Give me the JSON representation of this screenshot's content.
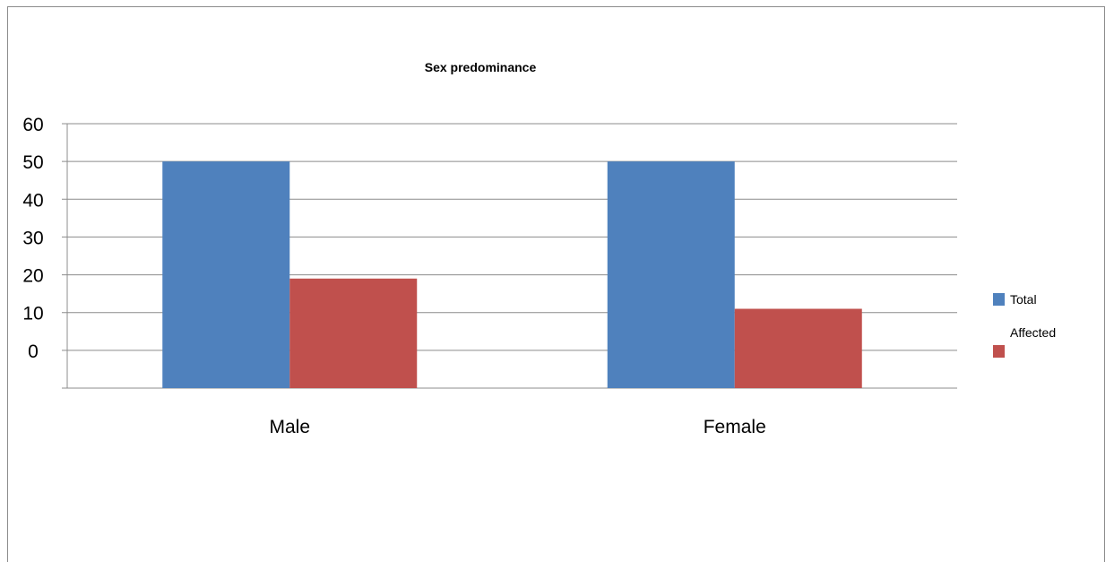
{
  "chart_data": {
    "type": "bar",
    "title": "Sex predominance",
    "categories": [
      "Male",
      "Female"
    ],
    "series": [
      {
        "name": "Total",
        "values": [
          50,
          50
        ],
        "color": "#4f81bd"
      },
      {
        "name": "Affected",
        "values": [
          19,
          11
        ],
        "color": "#c0504d"
      }
    ],
    "y_tick_labels": [
      "60",
      "50",
      "40",
      "30",
      "20",
      "10",
      "0"
    ],
    "ylim": [
      -10,
      60
    ],
    "grid": true,
    "legend_position": "right"
  }
}
